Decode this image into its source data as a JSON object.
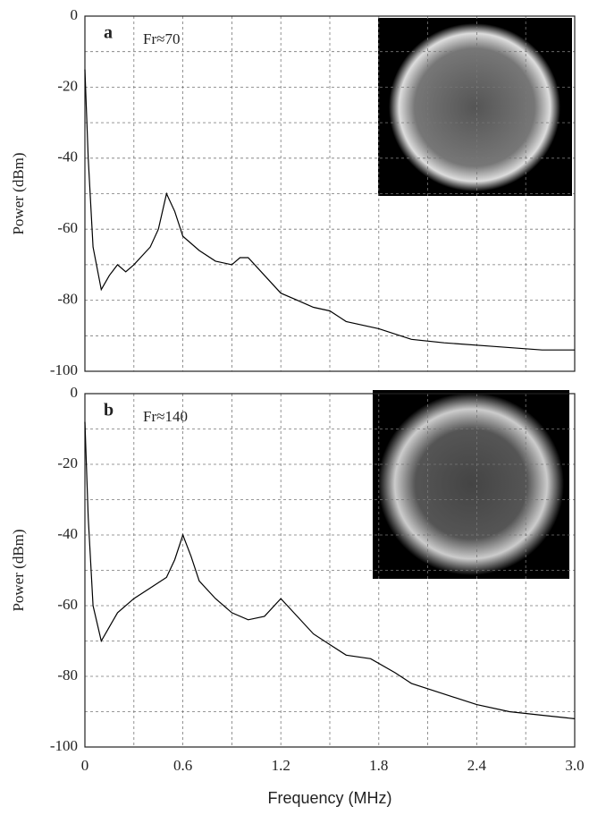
{
  "chart_data": [
    {
      "type": "line",
      "panel_label": "a",
      "annotation": "Fr≈70",
      "ylabel": "Power (dBm)",
      "color": "#000000",
      "x": [
        0,
        0.02,
        0.05,
        0.1,
        0.15,
        0.2,
        0.25,
        0.3,
        0.4,
        0.45,
        0.5,
        0.55,
        0.6,
        0.7,
        0.8,
        0.9,
        0.95,
        1.0,
        1.1,
        1.2,
        1.3,
        1.4,
        1.5,
        1.6,
        1.8,
        2.0,
        2.2,
        2.5,
        2.8,
        3.0
      ],
      "series": [
        {
          "values": [
            -15,
            -40,
            -65,
            -77,
            -73,
            -70,
            -72,
            -70,
            -65,
            -60,
            -50,
            -55,
            -62,
            -66,
            -69,
            -70,
            -68,
            -68,
            -73,
            -78,
            -80,
            -82,
            -83,
            -86,
            -88,
            -91,
            -92,
            -93,
            -94,
            -94
          ]
        }
      ],
      "xlim": [
        0,
        3
      ],
      "ylim": [
        -100,
        0
      ],
      "yticks": [
        0,
        -20,
        -40,
        -60,
        -80,
        -100
      ],
      "xgrid": [
        0.3,
        0.6,
        0.9,
        1.2,
        1.5,
        1.8,
        2.1,
        2.4,
        2.7
      ],
      "ygrid": [
        -10,
        -20,
        -30,
        -40,
        -50,
        -60,
        -70,
        -80,
        -90
      ]
    },
    {
      "type": "line",
      "panel_label": "b",
      "annotation": "Fr≈140",
      "ylabel": "Power (dBm)",
      "xlabel": "Frequency (MHz)",
      "color": "#000000",
      "x": [
        0,
        0.02,
        0.05,
        0.1,
        0.15,
        0.2,
        0.3,
        0.4,
        0.5,
        0.55,
        0.6,
        0.65,
        0.7,
        0.8,
        0.9,
        1.0,
        1.1,
        1.2,
        1.3,
        1.4,
        1.5,
        1.6,
        1.75,
        1.9,
        2.0,
        2.2,
        2.4,
        2.6,
        2.8,
        3.0
      ],
      "series": [
        {
          "values": [
            -8,
            -35,
            -60,
            -70,
            -66,
            -62,
            -58,
            -55,
            -52,
            -47,
            -40,
            -46,
            -53,
            -58,
            -62,
            -64,
            -63,
            -58,
            -63,
            -68,
            -71,
            -74,
            -75,
            -79,
            -82,
            -85,
            -88,
            -90,
            -91,
            -92
          ]
        }
      ],
      "xlim": [
        0,
        3
      ],
      "ylim": [
        -100,
        0
      ],
      "yticks": [
        0,
        -20,
        -40,
        -60,
        -80,
        -100
      ],
      "xticks": [
        0,
        0.6,
        1.2,
        1.8,
        2.4,
        {
          "value": 3,
          "label": "3.0"
        }
      ],
      "xgrid": [
        0.3,
        0.6,
        0.9,
        1.2,
        1.5,
        1.8,
        2.1,
        2.4,
        2.7
      ],
      "ygrid": [
        -10,
        -20,
        -30,
        -40,
        -50,
        -60,
        -70,
        -80,
        -90
      ]
    }
  ]
}
